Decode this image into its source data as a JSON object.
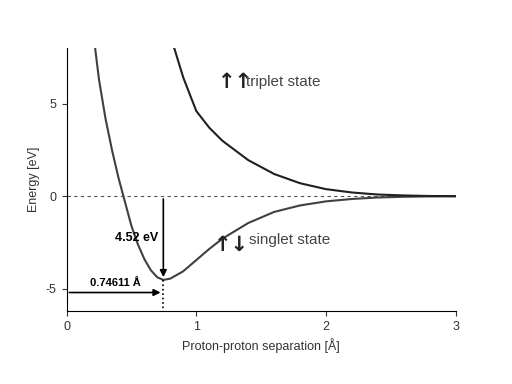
{
  "chart_data": {
    "type": "line",
    "xlabel": "Proton-proton separation [Å]",
    "ylabel": "Energy [eV]",
    "xlim": [
      0,
      3
    ],
    "ylim": [
      -6.2,
      8
    ],
    "xticks": [
      0,
      1,
      2,
      3
    ],
    "yticks": [
      -5,
      0,
      5
    ],
    "baseline": 0,
    "series": [
      {
        "name": "singlet state",
        "symbol": "↑↓",
        "color": "#404040",
        "line_style": "solid",
        "x": [
          0.22,
          0.25,
          0.3,
          0.35,
          0.4,
          0.45,
          0.5,
          0.55,
          0.6,
          0.65,
          0.7,
          0.74611,
          0.8,
          0.9,
          1.0,
          1.1,
          1.2,
          1.4,
          1.6,
          1.8,
          2.0,
          2.2,
          2.4,
          2.6,
          2.8,
          3.0
        ],
        "values": [
          8.0,
          6.3,
          4.2,
          2.5,
          1.0,
          -0.3,
          -1.6,
          -2.6,
          -3.4,
          -4.0,
          -4.38,
          -4.52,
          -4.45,
          -4.05,
          -3.45,
          -2.85,
          -2.3,
          -1.45,
          -0.85,
          -0.5,
          -0.28,
          -0.15,
          -0.07,
          -0.03,
          -0.01,
          0.0
        ]
      },
      {
        "name": "triplet state",
        "symbol": "↑↑",
        "color": "#202020",
        "line_style": "solid",
        "x": [
          0.83,
          0.9,
          1.0,
          1.1,
          1.2,
          1.4,
          1.6,
          1.8,
          2.0,
          2.2,
          2.4,
          2.6,
          2.8,
          3.0
        ],
        "values": [
          8.0,
          6.4,
          4.6,
          3.7,
          3.0,
          1.95,
          1.2,
          0.7,
          0.38,
          0.2,
          0.09,
          0.04,
          0.01,
          0.0
        ]
      }
    ],
    "annotations": [
      {
        "text": "4.52 eV",
        "x": 0.74611,
        "y_from": 0,
        "y_to": -4.52
      },
      {
        "text": "0.74611 Å",
        "y": -5.2,
        "x_from": 0,
        "x_to": 0.74611
      }
    ]
  }
}
